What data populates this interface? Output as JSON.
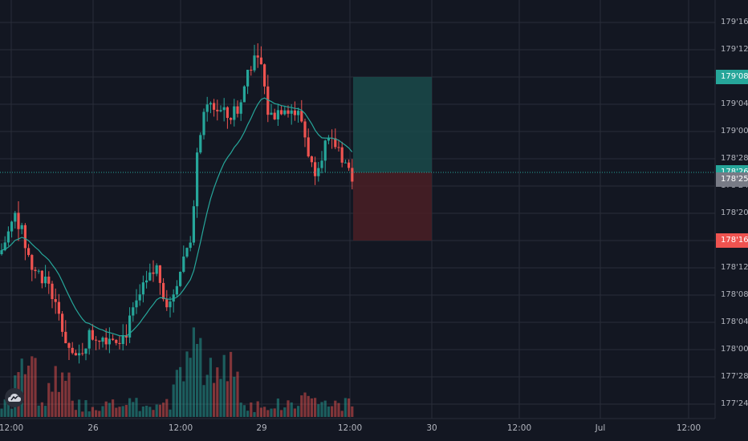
{
  "colors": {
    "background": "#131722",
    "grid": "#2a2e39",
    "up": "#26a69a",
    "down": "#ef5350",
    "ma_line": "#26a69a",
    "target_zone": "#1a4a4a",
    "stop_zone": "#4a1f24",
    "current_price_line": "#26a69a"
  },
  "price_axis": {
    "ticks": [
      "179'16",
      "179'12",
      "179'08",
      "179'04",
      "179'00",
      "178'28",
      "178'24",
      "178'20",
      "178'16",
      "178'12",
      "178'08",
      "178'04",
      "178'00",
      "177'28",
      "177'24"
    ],
    "tags": [
      {
        "label": "179'08",
        "color": "#26a69a"
      },
      {
        "label": "178'26",
        "color": "#26a69a"
      },
      {
        "label": "178'25",
        "color": "#787b86"
      },
      {
        "label": "178'16",
        "color": "#ef5350"
      }
    ]
  },
  "time_axis": {
    "ticks": [
      "12:00",
      "26",
      "12:00",
      "29",
      "12:00",
      "30",
      "12:00",
      "Jul",
      "12:00"
    ]
  },
  "logo": {
    "icon": "tradingview-cloud-icon"
  },
  "chart_data": {
    "type": "candlestick",
    "price_unit": "32nds",
    "ylim": [
      "177'22",
      "179'18"
    ],
    "series": [
      {
        "name": "price"
      },
      {
        "name": "moving-average"
      },
      {
        "name": "volume"
      }
    ]
  }
}
